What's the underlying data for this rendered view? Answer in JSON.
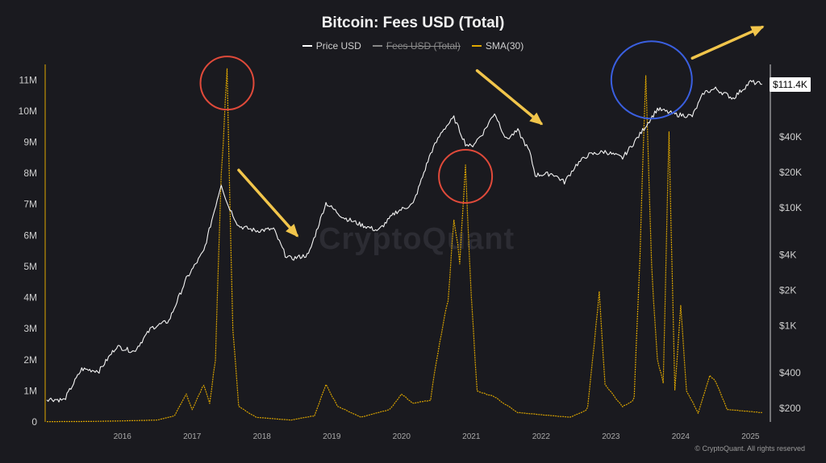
{
  "title": "Bitcoin: Fees USD (Total)",
  "legend": [
    {
      "label": "Price USD",
      "color": "#ffffff",
      "active": true
    },
    {
      "label": "Fees USD (Total)",
      "color": "#888888",
      "active": false
    },
    {
      "label": "SMA(30)",
      "color": "#e0a800",
      "active": true
    }
  ],
  "watermark": "CryptoQuant",
  "footer": "© CryptoQuant. All rights reserved",
  "price_tag": "$111.4K",
  "chart_data": {
    "type": "line",
    "title": "Bitcoin: Fees USD (Total)",
    "x_ticks": [
      "2016",
      "2017",
      "2018",
      "2019",
      "2020",
      "2021",
      "2022",
      "2023",
      "2024",
      "2025"
    ],
    "left_axis": {
      "ticks": [
        "0",
        "1M",
        "2M",
        "3M",
        "4M",
        "5M",
        "6M",
        "7M",
        "8M",
        "9M",
        "10M",
        "11M"
      ],
      "ylim": [
        0,
        11500000
      ]
    },
    "right_axis": {
      "scale": "log",
      "ticks": [
        "$200",
        "$400",
        "$1K",
        "$2K",
        "$4K",
        "$10K",
        "$20K",
        "$40K",
        "$111.4K"
      ]
    },
    "series": [
      {
        "name": "Price USD",
        "axis": "right",
        "points": [
          [
            "2015-06",
            240
          ],
          [
            "2015-09",
            235
          ],
          [
            "2015-12",
            430
          ],
          [
            "2016-03",
            415
          ],
          [
            "2016-06",
            670
          ],
          [
            "2016-09",
            605
          ],
          [
            "2016-12",
            960
          ],
          [
            "2017-03",
            1100
          ],
          [
            "2017-06",
            2500
          ],
          [
            "2017-09",
            4300
          ],
          [
            "2017-12",
            16000
          ],
          [
            "2018-01",
            11000
          ],
          [
            "2018-03",
            7000
          ],
          [
            "2018-06",
            6400
          ],
          [
            "2018-09",
            6600
          ],
          [
            "2018-11",
            4000
          ],
          [
            "2018-12",
            3700
          ],
          [
            "2019-03",
            4000
          ],
          [
            "2019-06",
            11000
          ],
          [
            "2019-09",
            8300
          ],
          [
            "2019-12",
            7200
          ],
          [
            "2020-03",
            6400
          ],
          [
            "2020-06",
            9200
          ],
          [
            "2020-09",
            10800
          ],
          [
            "2020-12",
            29000
          ],
          [
            "2021-02",
            45000
          ],
          [
            "2021-04",
            58000
          ],
          [
            "2021-06",
            35000
          ],
          [
            "2021-07",
            33000
          ],
          [
            "2021-09",
            43000
          ],
          [
            "2021-11",
            64000
          ],
          [
            "2022-01",
            38000
          ],
          [
            "2022-03",
            45000
          ],
          [
            "2022-05",
            30000
          ],
          [
            "2022-06",
            19000
          ],
          [
            "2022-09",
            19500
          ],
          [
            "2022-11",
            16500
          ],
          [
            "2023-01",
            23000
          ],
          [
            "2023-03",
            28000
          ],
          [
            "2023-06",
            30000
          ],
          [
            "2023-09",
            26500
          ],
          [
            "2023-12",
            42000
          ],
          [
            "2024-03",
            69000
          ],
          [
            "2024-06",
            62000
          ],
          [
            "2024-09",
            60000
          ],
          [
            "2024-11",
            95000
          ],
          [
            "2025-01",
            102000
          ],
          [
            "2025-04",
            85000
          ],
          [
            "2025-07",
            117000
          ],
          [
            "2025-09",
            111400
          ]
        ]
      },
      {
        "name": "SMA(30)",
        "axis": "left",
        "points": [
          [
            "2015-06",
            10000
          ],
          [
            "2016-01",
            15000
          ],
          [
            "2016-06",
            30000
          ],
          [
            "2017-01",
            60000
          ],
          [
            "2017-04",
            200000
          ],
          [
            "2017-06",
            900000
          ],
          [
            "2017-07",
            400000
          ],
          [
            "2017-09",
            1200000
          ],
          [
            "2017-10",
            600000
          ],
          [
            "2017-11",
            2000000
          ],
          [
            "2017-12",
            8000000
          ],
          [
            "2018-01",
            11200000
          ],
          [
            "2018-02",
            3000000
          ],
          [
            "2018-03",
            500000
          ],
          [
            "2018-06",
            150000
          ],
          [
            "2018-12",
            60000
          ],
          [
            "2019-04",
            200000
          ],
          [
            "2019-06",
            1200000
          ],
          [
            "2019-08",
            500000
          ],
          [
            "2019-12",
            150000
          ],
          [
            "2020-05",
            400000
          ],
          [
            "2020-07",
            900000
          ],
          [
            "2020-09",
            600000
          ],
          [
            "2020-12",
            700000
          ],
          [
            "2021-01",
            2000000
          ],
          [
            "2021-03",
            4000000
          ],
          [
            "2021-04",
            6500000
          ],
          [
            "2021-05",
            5200000
          ],
          [
            "2021-06",
            8300000
          ],
          [
            "2021-07",
            4000000
          ],
          [
            "2021-08",
            1000000
          ],
          [
            "2021-11",
            800000
          ],
          [
            "2022-03",
            300000
          ],
          [
            "2022-09",
            200000
          ],
          [
            "2022-12",
            150000
          ],
          [
            "2023-03",
            400000
          ],
          [
            "2023-05",
            4200000
          ],
          [
            "2023-06",
            1200000
          ],
          [
            "2023-09",
            500000
          ],
          [
            "2023-11",
            700000
          ],
          [
            "2023-12",
            5500000
          ],
          [
            "2024-01",
            11000000
          ],
          [
            "2024-02",
            5000000
          ],
          [
            "2024-03",
            2000000
          ],
          [
            "2024-04",
            1300000
          ],
          [
            "2024-05",
            9300000
          ],
          [
            "2024-06",
            1000000
          ],
          [
            "2024-07",
            3800000
          ],
          [
            "2024-08",
            1000000
          ],
          [
            "2024-10",
            300000
          ],
          [
            "2024-12",
            1500000
          ],
          [
            "2025-01",
            1300000
          ],
          [
            "2025-03",
            400000
          ],
          [
            "2025-09",
            300000
          ]
        ]
      }
    ],
    "annotations": [
      {
        "shape": "circle",
        "color": "#e04a3a",
        "at": [
          "2018-01",
          10900000
        ]
      },
      {
        "shape": "circle",
        "color": "#e04a3a",
        "at": [
          "2021-06",
          7900000
        ]
      },
      {
        "shape": "circle",
        "color": "#3a5fe0",
        "at": [
          "2024-02",
          11000000
        ]
      },
      {
        "shape": "arrow",
        "direction": "down-right",
        "color": "#f1c54b",
        "from": [
          "2018-03",
          8100000
        ],
        "to": [
          "2019-01",
          6000000
        ]
      },
      {
        "shape": "arrow",
        "direction": "down-right",
        "color": "#f1c54b",
        "from": [
          "2021-08",
          11300000
        ],
        "to": [
          "2022-07",
          9600000
        ]
      },
      {
        "shape": "arrow",
        "direction": "up-right",
        "color": "#f1c54b",
        "from": [
          "2024-09",
          11700000
        ],
        "to": [
          "2025-09",
          12700000
        ]
      }
    ]
  }
}
